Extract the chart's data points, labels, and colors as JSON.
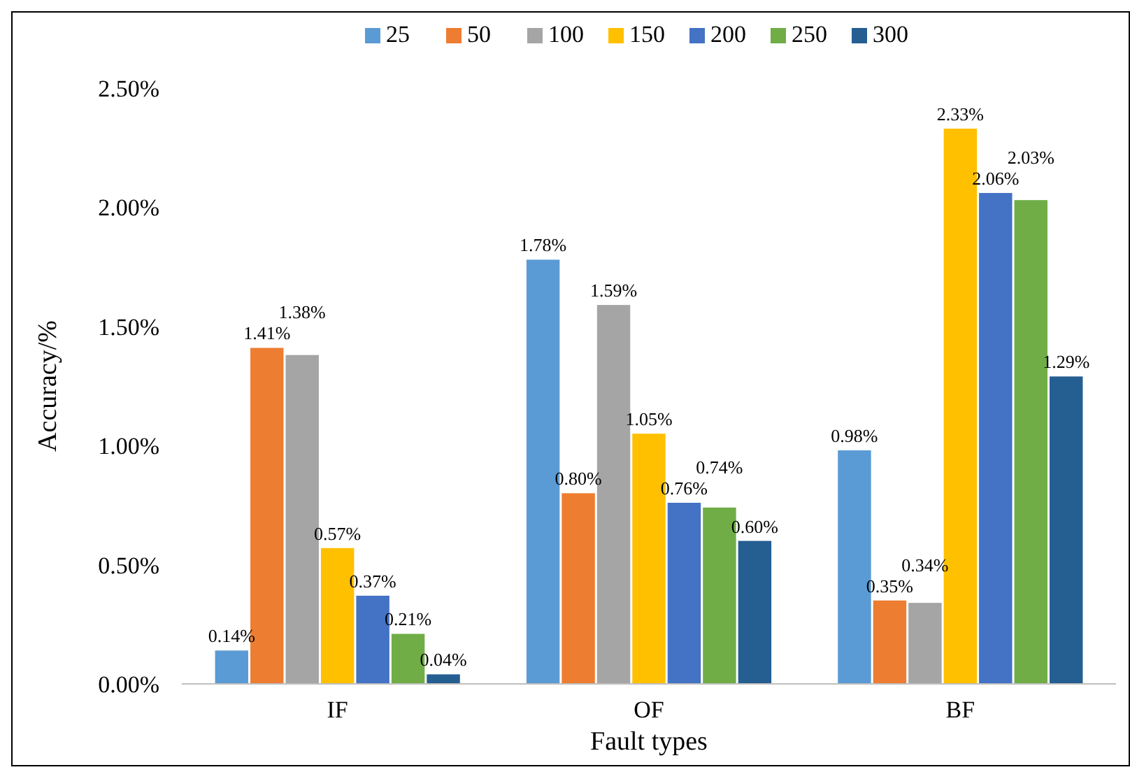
{
  "chart_data": {
    "type": "bar",
    "xlabel": "Fault types",
    "ylabel": "Accuracy/%",
    "categories": [
      "IF",
      "OF",
      "BF"
    ],
    "ylim": [
      0,
      2.5
    ],
    "yticks": [
      {
        "value": 0,
        "label": "0.00%"
      },
      {
        "value": 0.5,
        "label": "0.50%"
      },
      {
        "value": 1,
        "label": "1.00%"
      },
      {
        "value": 1.5,
        "label": "1.50%"
      },
      {
        "value": 2,
        "label": "2.00%"
      },
      {
        "value": 2.5,
        "label": "2.50%"
      }
    ],
    "grid": false,
    "legend": "top",
    "series": [
      {
        "name": "25",
        "color": "#5b9bd5",
        "values": [
          0.14,
          1.78,
          0.98
        ],
        "value_labels": [
          "0.14%",
          "1.78%",
          "0.98%"
        ]
      },
      {
        "name": "50",
        "color": "#ed7d31",
        "values": [
          1.41,
          0.8,
          0.35
        ],
        "value_labels": [
          "1.41%",
          "0.80%",
          "0.35%"
        ]
      },
      {
        "name": "100",
        "color": "#a5a5a5",
        "values": [
          1.38,
          1.59,
          0.34
        ],
        "value_labels": [
          "1.38%",
          "1.59%",
          "0.34%"
        ]
      },
      {
        "name": "150",
        "color": "#ffc000",
        "values": [
          0.57,
          1.05,
          2.33
        ],
        "value_labels": [
          "0.57%",
          "1.05%",
          "2.33%"
        ]
      },
      {
        "name": "200",
        "color": "#4472c4",
        "values": [
          0.37,
          0.76,
          2.06
        ],
        "value_labels": [
          "0.37%",
          "0.76%",
          "2.06%"
        ]
      },
      {
        "name": "250",
        "color": "#70ad47",
        "values": [
          0.21,
          0.74,
          2.03
        ],
        "value_labels": [
          "0.21%",
          "0.74%",
          "2.03%"
        ]
      },
      {
        "name": "300",
        "color": "#255e91",
        "values": [
          0.04,
          0.6,
          1.29
        ],
        "value_labels": [
          "0.04%",
          "0.60%",
          "1.29%"
        ]
      }
    ]
  }
}
